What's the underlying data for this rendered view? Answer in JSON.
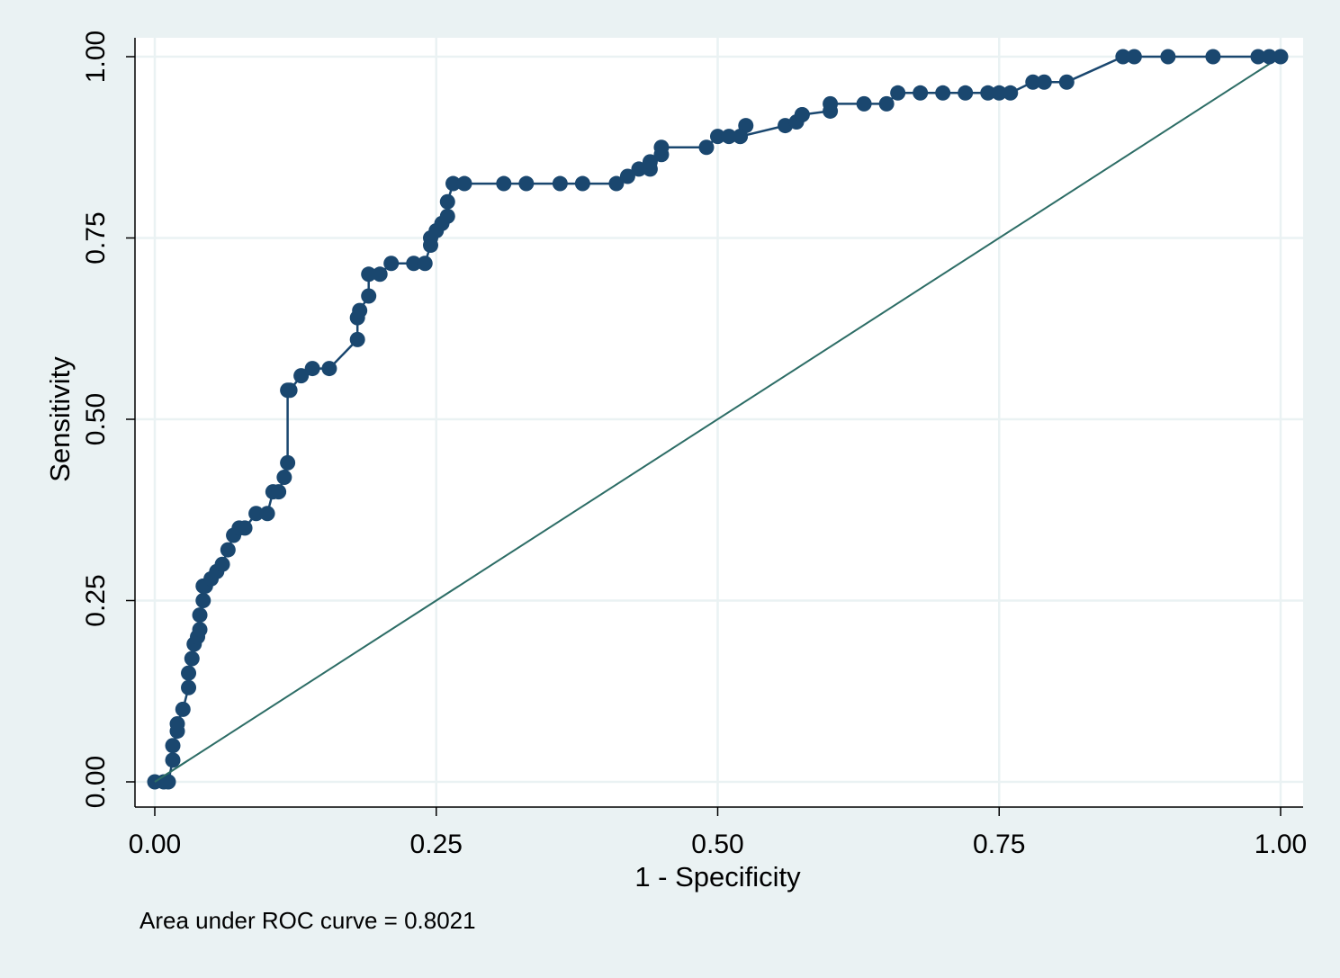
{
  "colors": {
    "background": "#eaf2f3",
    "plot_area": "#ffffff",
    "grid": "#eaf2f3",
    "roc_curve": "#1a476f",
    "reference_line": "#2d6d66"
  },
  "chart_data": {
    "type": "line",
    "title": "",
    "xlabel": "1 - Specificity",
    "ylabel": "Sensitivity",
    "xlim": [
      0,
      1
    ],
    "ylim": [
      0,
      1
    ],
    "xticks": [
      "0.00",
      "0.25",
      "0.50",
      "0.75",
      "1.00"
    ],
    "yticks": [
      "0.00",
      "0.25",
      "0.50",
      "0.75",
      "1.00"
    ],
    "grid": true,
    "legend": "none",
    "note": "Area under ROC curve = 0.8021",
    "series": [
      {
        "marker": "circle",
        "x": [
          0.0,
          0.008,
          0.012,
          0.016,
          0.016,
          0.02,
          0.02,
          0.025,
          0.03,
          0.03,
          0.033,
          0.035,
          0.038,
          0.04,
          0.04,
          0.043,
          0.043,
          0.045,
          0.05,
          0.055,
          0.06,
          0.065,
          0.07,
          0.075,
          0.08,
          0.09,
          0.1,
          0.105,
          0.11,
          0.115,
          0.118,
          0.118,
          0.12,
          0.13,
          0.14,
          0.155,
          0.18,
          0.18,
          0.182,
          0.19,
          0.19,
          0.2,
          0.21,
          0.23,
          0.24,
          0.245,
          0.245,
          0.25,
          0.255,
          0.26,
          0.26,
          0.265,
          0.275,
          0.31,
          0.33,
          0.36,
          0.38,
          0.41,
          0.42,
          0.43,
          0.44,
          0.44,
          0.45,
          0.45,
          0.49,
          0.5,
          0.51,
          0.52,
          0.525,
          0.52,
          0.56,
          0.57,
          0.575,
          0.575,
          0.6,
          0.6,
          0.63,
          0.65,
          0.66,
          0.68,
          0.7,
          0.72,
          0.74,
          0.75,
          0.76,
          0.78,
          0.79,
          0.81,
          0.86,
          0.87,
          0.9,
          0.94,
          0.98,
          0.99,
          1.0
        ],
        "y": [
          0.0,
          0.0,
          0.0,
          0.03,
          0.05,
          0.07,
          0.08,
          0.1,
          0.13,
          0.15,
          0.17,
          0.19,
          0.2,
          0.21,
          0.23,
          0.25,
          0.27,
          0.27,
          0.28,
          0.29,
          0.3,
          0.32,
          0.34,
          0.35,
          0.35,
          0.37,
          0.37,
          0.4,
          0.4,
          0.42,
          0.44,
          0.54,
          0.54,
          0.56,
          0.57,
          0.57,
          0.61,
          0.64,
          0.65,
          0.67,
          0.7,
          0.7,
          0.715,
          0.715,
          0.715,
          0.74,
          0.75,
          0.76,
          0.77,
          0.78,
          0.8,
          0.825,
          0.825,
          0.825,
          0.825,
          0.825,
          0.825,
          0.825,
          0.835,
          0.845,
          0.845,
          0.855,
          0.865,
          0.875,
          0.875,
          0.89,
          0.89,
          0.89,
          0.905,
          0.89,
          0.905,
          0.91,
          0.92,
          0.92,
          0.925,
          0.935,
          0.935,
          0.935,
          0.95,
          0.95,
          0.95,
          0.95,
          0.95,
          0.95,
          0.95,
          0.965,
          0.965,
          0.965,
          1.0,
          1.0,
          1.0,
          1.0,
          1.0,
          1.0,
          1.0
        ]
      },
      {
        "x": [
          0,
          1
        ],
        "y": [
          0,
          1
        ]
      }
    ]
  }
}
